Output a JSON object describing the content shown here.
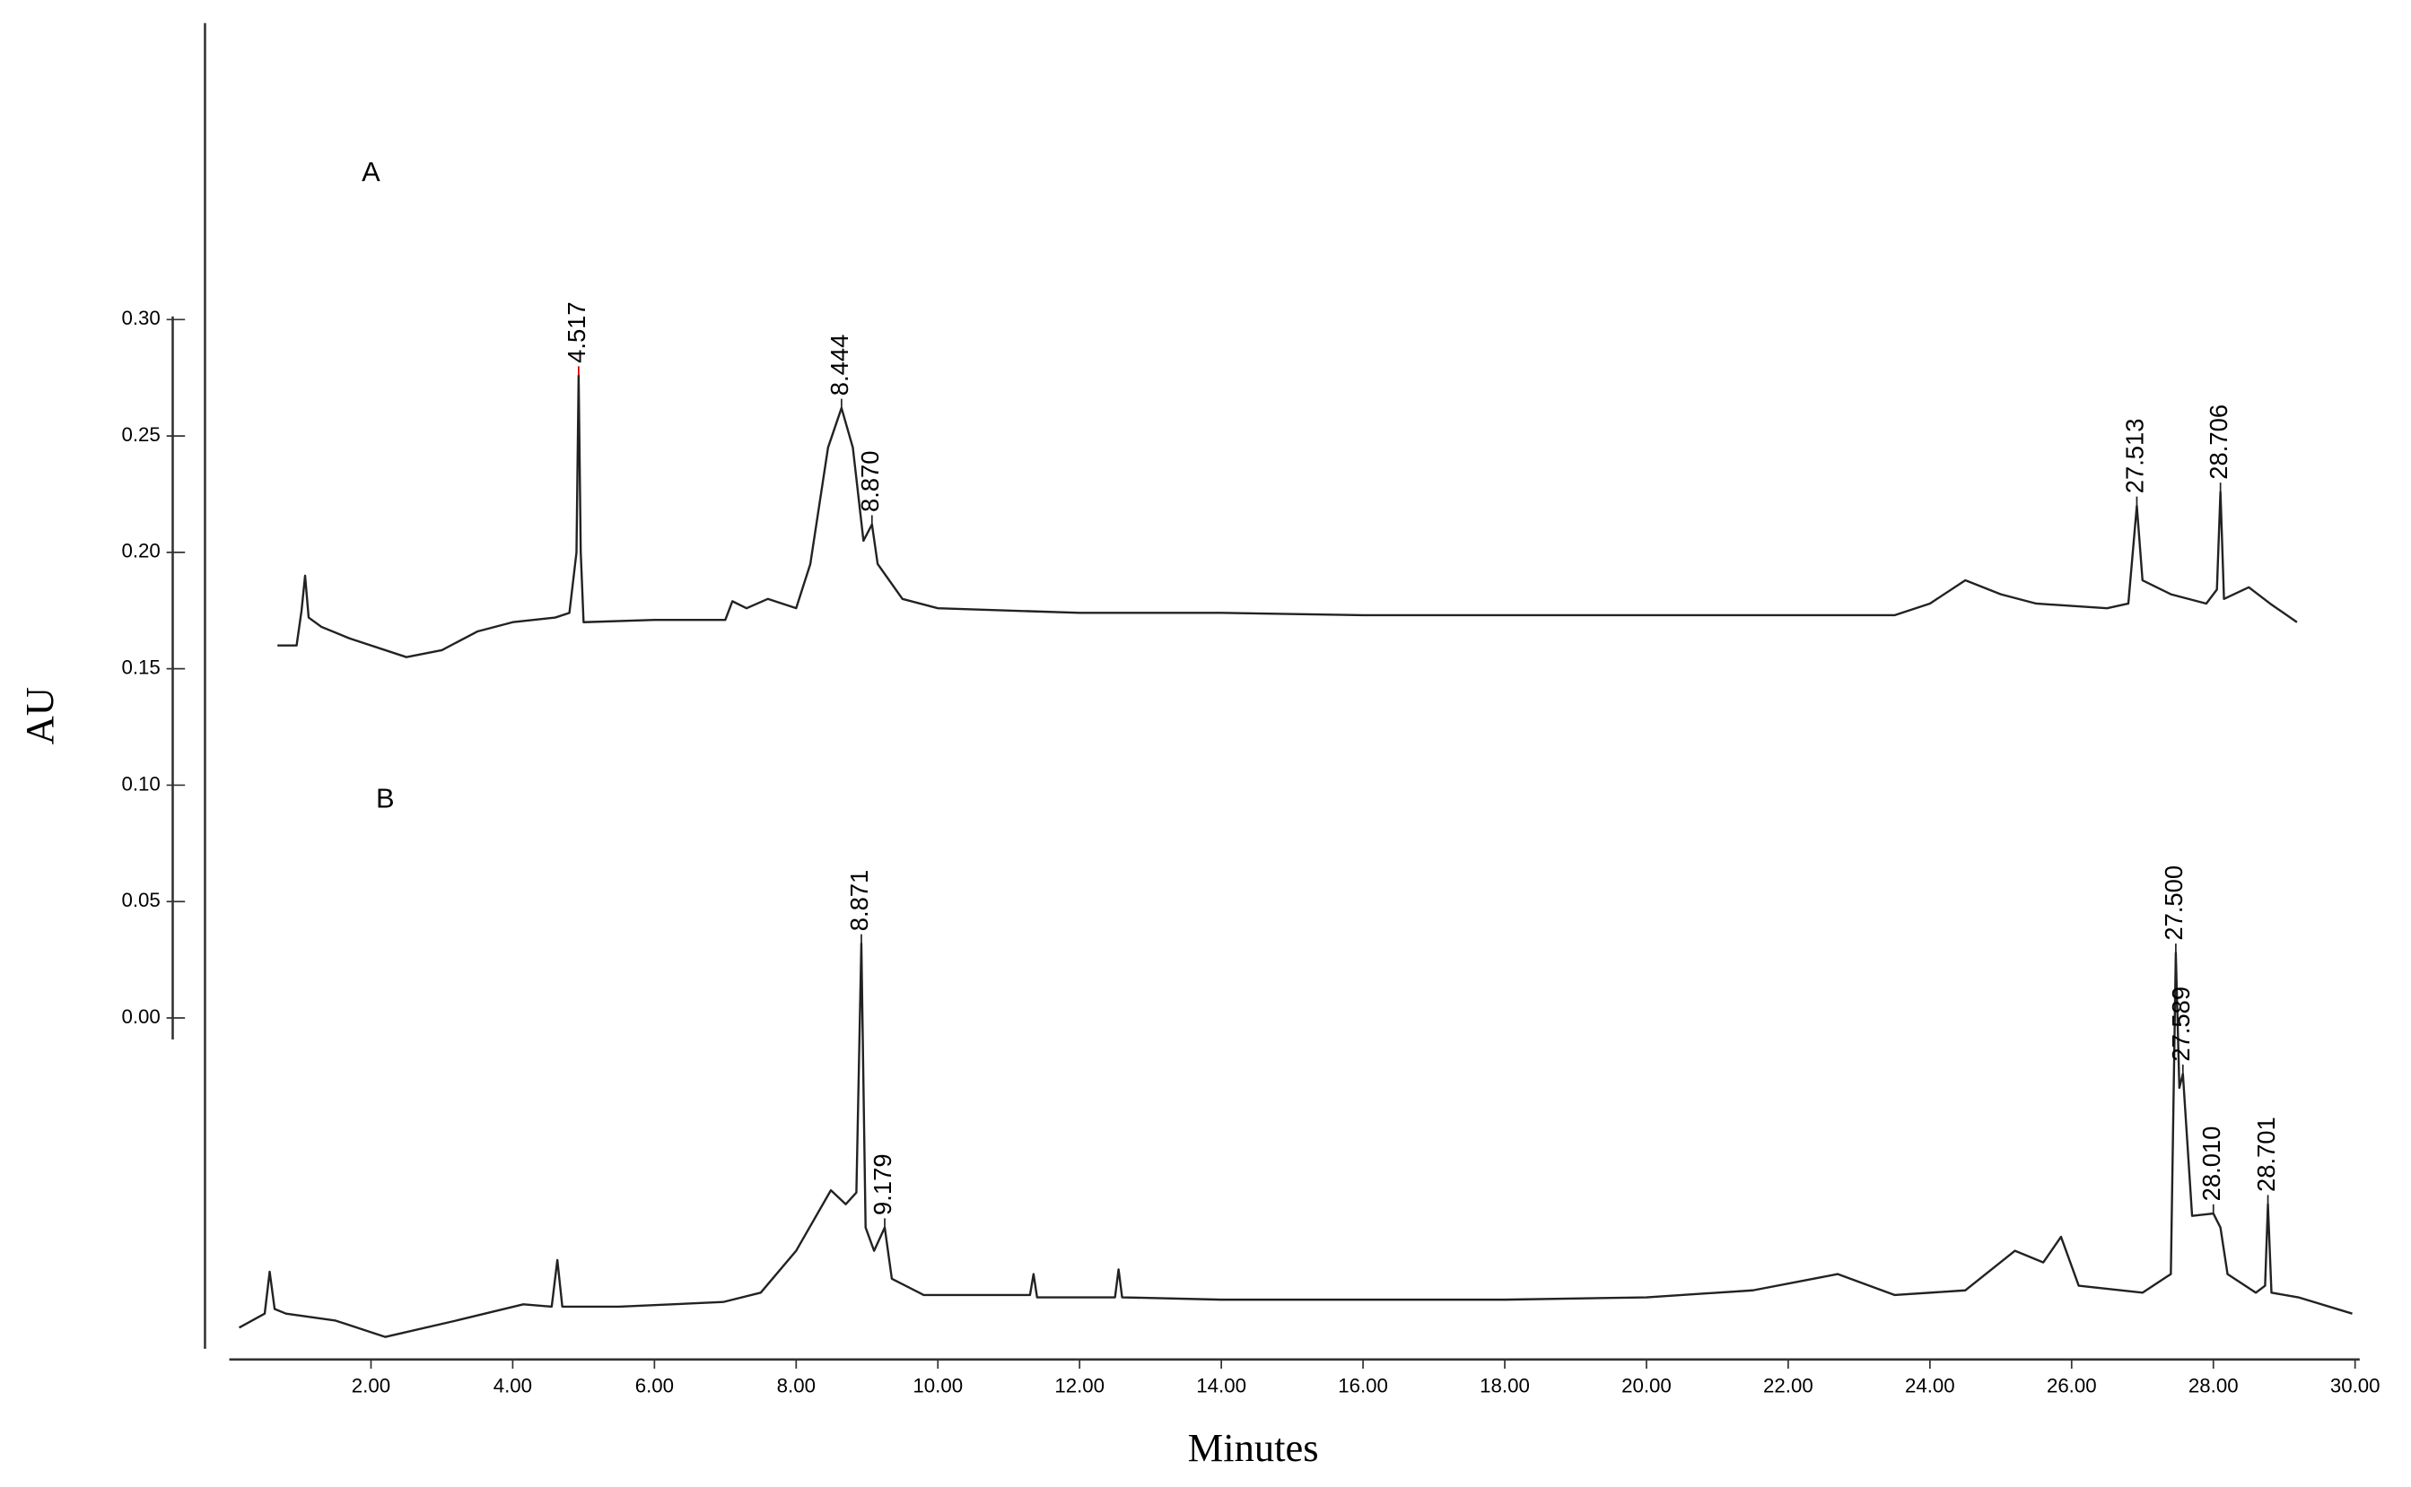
{
  "chart_data": {
    "type": "line",
    "x_label": "Minutes",
    "y_label": "AU",
    "xlim": [
      0,
      30
    ],
    "ylim": [
      -0.15,
      0.43
    ],
    "xticks": [
      {
        "value": 2,
        "label": "2.00"
      },
      {
        "value": 4,
        "label": "4.00"
      },
      {
        "value": 6,
        "label": "6.00"
      },
      {
        "value": 8,
        "label": "8.00"
      },
      {
        "value": 10,
        "label": "10.00"
      },
      {
        "value": 12,
        "label": "12.00"
      },
      {
        "value": 14,
        "label": "14.00"
      },
      {
        "value": 16,
        "label": "16.00"
      },
      {
        "value": 18,
        "label": "18.00"
      },
      {
        "value": 20,
        "label": "20.00"
      },
      {
        "value": 22,
        "label": "22.00"
      },
      {
        "value": 24,
        "label": "24.00"
      },
      {
        "value": 26,
        "label": "26.00"
      },
      {
        "value": 28,
        "label": "28.00"
      },
      {
        "value": 30,
        "label": "30.00"
      }
    ],
    "yticks": [
      {
        "value": 0,
        "label": "0.00"
      },
      {
        "value": 0.05,
        "label": "0.05"
      },
      {
        "value": 0.1,
        "label": "0.10"
      },
      {
        "value": 0.15,
        "label": "0.15"
      },
      {
        "value": 0.2,
        "label": "0.20"
      },
      {
        "value": 0.25,
        "label": "0.25"
      },
      {
        "value": 0.3,
        "label": "0.30"
      }
    ],
    "grid": false,
    "series": [
      {
        "name": "A",
        "color": "#222222",
        "x": [
          0.68,
          0.95,
          1.02,
          1.07,
          1.12,
          1.3,
          1.7,
          2.5,
          3.0,
          3.5,
          4.0,
          4.6,
          4.8,
          4.9,
          4.93,
          4.96,
          5.0,
          6.0,
          7.0,
          7.1,
          7.3,
          7.6,
          8.0,
          8.2,
          8.45,
          8.64,
          8.8,
          8.95,
          9.07,
          9.15,
          9.5,
          10.0,
          12,
          14,
          16,
          20,
          23.5,
          24.0,
          24.5,
          25.0,
          25.5,
          26.5,
          26.8,
          26.92,
          27.0,
          27.4,
          27.9,
          28.05,
          28.1,
          28.15,
          28.5,
          28.8,
          29.18
        ],
        "values": [
          0.16,
          0.16,
          0.175,
          0.19,
          0.172,
          0.168,
          0.163,
          0.155,
          0.158,
          0.166,
          0.17,
          0.172,
          0.174,
          0.2,
          0.276,
          0.2,
          0.17,
          0.171,
          0.171,
          0.179,
          0.176,
          0.18,
          0.176,
          0.195,
          0.245,
          0.262,
          0.245,
          0.205,
          0.212,
          0.195,
          0.18,
          0.176,
          0.174,
          0.174,
          0.173,
          0.173,
          0.173,
          0.178,
          0.188,
          0.182,
          0.178,
          0.176,
          0.178,
          0.22,
          0.188,
          0.182,
          0.178,
          0.184,
          0.226,
          0.18,
          0.185,
          0.178,
          0.17
        ]
      },
      {
        "name": "B",
        "color": "#222222",
        "x": [
          0.14,
          0.5,
          0.57,
          0.64,
          0.8,
          1.5,
          2.2,
          3.2,
          4.15,
          4.55,
          4.63,
          4.7,
          5.5,
          6.97,
          7.5,
          8.0,
          8.49,
          8.7,
          8.85,
          8.92,
          8.98,
          9.1,
          9.25,
          9.35,
          9.8,
          11.3,
          11.35,
          11.4,
          12.5,
          12.55,
          12.6,
          14,
          16,
          18,
          20,
          21.5,
          22.7,
          23.5,
          24.5,
          25.2,
          25.6,
          25.85,
          26.1,
          27.0,
          27.4,
          27.47,
          27.52,
          27.57,
          27.7,
          28.0,
          28.1,
          28.2,
          28.6,
          28.73,
          28.77,
          28.82,
          29.2,
          29.96
        ],
        "values": [
          -0.133,
          -0.127,
          -0.109,
          -0.125,
          -0.127,
          -0.13,
          -0.137,
          -0.13,
          -0.123,
          -0.124,
          -0.104,
          -0.124,
          -0.124,
          -0.122,
          -0.118,
          -0.1,
          -0.074,
          -0.08,
          -0.075,
          0.032,
          -0.09,
          -0.1,
          -0.09,
          -0.112,
          -0.119,
          -0.119,
          -0.11,
          -0.12,
          -0.12,
          -0.108,
          -0.12,
          -0.121,
          -0.121,
          -0.121,
          -0.12,
          -0.117,
          -0.11,
          -0.119,
          -0.117,
          -0.1,
          -0.105,
          -0.094,
          -0.115,
          -0.118,
          -0.11,
          0.028,
          -0.03,
          -0.024,
          -0.085,
          -0.084,
          -0.09,
          -0.11,
          -0.118,
          -0.115,
          -0.08,
          -0.118,
          -0.12,
          -0.127
        ]
      }
    ],
    "panel_labels": [
      {
        "text": "A",
        "x": 2.0,
        "y": 0.3625
      },
      {
        "text": "B",
        "x": 2.2,
        "y": 0.0935
      }
    ],
    "annotations": [
      {
        "text": "4.517",
        "x": 4.93,
        "y": 0.276,
        "color": "#d40000"
      },
      {
        "text": "8.444",
        "x": 8.64,
        "y": 0.262,
        "color": "#222222"
      },
      {
        "text": "8.870",
        "x": 9.07,
        "y": 0.212,
        "color": "#222222"
      },
      {
        "text": "27.513",
        "x": 26.92,
        "y": 0.22,
        "color": "#222222"
      },
      {
        "text": "28.706",
        "x": 28.1,
        "y": 0.226,
        "color": "#222222"
      },
      {
        "text": "8.871",
        "x": 8.92,
        "y": 0.032,
        "color": "#222222"
      },
      {
        "text": "9.179",
        "x": 9.25,
        "y": -0.09,
        "color": "#222222"
      },
      {
        "text": "27.500",
        "x": 27.47,
        "y": 0.028,
        "color": "#222222"
      },
      {
        "text": "27.589",
        "x": 27.57,
        "y": -0.024,
        "color": "#222222"
      },
      {
        "text": "28.010",
        "x": 28.0,
        "y": -0.084,
        "color": "#222222"
      },
      {
        "text": "28.701",
        "x": 28.77,
        "y": -0.08,
        "color": "#222222"
      }
    ]
  }
}
